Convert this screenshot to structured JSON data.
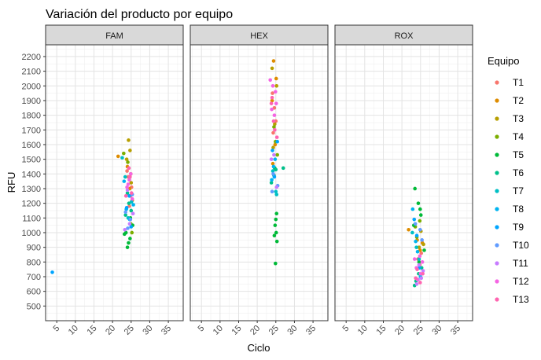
{
  "chart_data": {
    "type": "scatter",
    "title": "Variación del producto por equipo",
    "xlabel": "Ciclo",
    "ylabel": "RFU",
    "xlim": [
      2,
      39
    ],
    "ylim": [
      400,
      2280
    ],
    "x_ticks": [
      5,
      10,
      15,
      20,
      25,
      30,
      35
    ],
    "y_ticks": [
      500,
      600,
      700,
      800,
      900,
      1000,
      1100,
      1200,
      1300,
      1400,
      1500,
      1600,
      1700,
      1800,
      1900,
      2000,
      2100,
      2200
    ],
    "grid": true,
    "facets": [
      "FAM",
      "HEX",
      "ROX"
    ],
    "legend": {
      "title": "Equipo",
      "position": "right",
      "entries": [
        {
          "label": "T1",
          "color": "#F8766D"
        },
        {
          "label": "T2",
          "color": "#DE8C00"
        },
        {
          "label": "T3",
          "color": "#B79F00"
        },
        {
          "label": "T4",
          "color": "#7CAE00"
        },
        {
          "label": "T5",
          "color": "#00BA38"
        },
        {
          "label": "T6",
          "color": "#00C08B"
        },
        {
          "label": "T7",
          "color": "#00BFC4"
        },
        {
          "label": "T8",
          "color": "#00B4F0"
        },
        {
          "label": "T9",
          "color": "#00A5FF"
        },
        {
          "label": "T10",
          "color": "#619CFF"
        },
        {
          "label": "T11",
          "color": "#C77CFF"
        },
        {
          "label": "T12",
          "color": "#F564E3"
        },
        {
          "label": "T13",
          "color": "#FF64B0"
        }
      ]
    },
    "series": [
      {
        "facet": "FAM",
        "equipo": "T1",
        "x": [
          24.2,
          24.8,
          25.1,
          24.5,
          23.9
        ],
        "y": [
          1380,
          1250,
          1310,
          1180,
          1420
        ]
      },
      {
        "facet": "FAM",
        "equipo": "T2",
        "x": [
          21.5,
          24.0,
          24.6,
          25.3,
          24.9
        ],
        "y": [
          1520,
          1450,
          1300,
          1220,
          1400
        ]
      },
      {
        "facet": "FAM",
        "equipo": "T3",
        "x": [
          24.3,
          24.7,
          23.8,
          25.0
        ],
        "y": [
          1630,
          1560,
          1500,
          1340
        ]
      },
      {
        "facet": "FAM",
        "equipo": "T4",
        "x": [
          23.0,
          24.1,
          24.9,
          25.2
        ],
        "y": [
          1540,
          1480,
          1060,
          1000
        ]
      },
      {
        "facet": "FAM",
        "equipo": "T5",
        "x": [
          24.0,
          24.3,
          24.7,
          23.6,
          25.4,
          23.2,
          24.8
        ],
        "y": [
          900,
          930,
          960,
          1000,
          1050,
          990,
          1100
        ]
      },
      {
        "facet": "FAM",
        "equipo": "T6",
        "x": [
          23.5,
          24.4,
          25.0,
          24.0
        ],
        "y": [
          1120,
          1200,
          1150,
          1270
        ]
      },
      {
        "facet": "FAM",
        "equipo": "T7",
        "x": [
          22.6,
          23.4,
          24.2,
          25.1
        ],
        "y": [
          1510,
          1380,
          1100,
          1210
        ]
      },
      {
        "facet": "FAM",
        "equipo": "T8",
        "x": [
          23.1,
          24.6,
          25.6,
          23.7
        ],
        "y": [
          1350,
          1090,
          1190,
          1160
        ]
      },
      {
        "facet": "FAM",
        "equipo": "T9",
        "x": [
          3.8,
          23.8,
          24.5,
          25.0
        ],
        "y": [
          730,
          1170,
          1250,
          1040
        ]
      },
      {
        "facet": "FAM",
        "equipo": "T10",
        "x": [
          24.1,
          23.5,
          24.8,
          25.3
        ],
        "y": [
          1030,
          1140,
          1090,
          1260
        ]
      },
      {
        "facet": "FAM",
        "equipo": "T11",
        "x": [
          23.3,
          24.6,
          25.5,
          24.0
        ],
        "y": [
          1020,
          1060,
          1130,
          1290
        ]
      },
      {
        "facet": "FAM",
        "equipo": "T12",
        "x": [
          24.2,
          24.9,
          25.3,
          23.9,
          24.5
        ],
        "y": [
          1330,
          1400,
          1230,
          1310,
          1360
        ]
      },
      {
        "facet": "FAM",
        "equipo": "T13",
        "x": [
          24.4,
          23.6,
          25.1,
          24.7
        ],
        "y": [
          1440,
          1250,
          1270,
          1380
        ]
      },
      {
        "facet": "HEX",
        "equipo": "T1",
        "x": [
          24.1,
          24.6,
          25.0,
          24.3
        ],
        "y": [
          1950,
          1850,
          1760,
          1680
        ]
      },
      {
        "facet": "HEX",
        "equipo": "T2",
        "x": [
          24.4,
          25.1,
          24.0,
          24.8,
          24.2
        ],
        "y": [
          2170,
          2050,
          1900,
          1600,
          1470
        ]
      },
      {
        "facet": "HEX",
        "equipo": "T3",
        "x": [
          24.0,
          25.2,
          24.7,
          24.3
        ],
        "y": [
          2120,
          2000,
          1740,
          1580
        ]
      },
      {
        "facet": "HEX",
        "equipo": "T4",
        "x": [
          24.5,
          24.9,
          25.4
        ],
        "y": [
          1720,
          1620,
          1530
        ]
      },
      {
        "facet": "HEX",
        "equipo": "T5",
        "x": [
          24.9,
          25.3,
          24.6,
          25.1,
          24.8,
          25.0,
          25.2,
          24.7
        ],
        "y": [
          790,
          940,
          980,
          1000,
          1050,
          1090,
          1130,
          1440
        ]
      },
      {
        "facet": "HEX",
        "equipo": "T6",
        "x": [
          23.8,
          24.5,
          25.0,
          27.0
        ],
        "y": [
          1340,
          1390,
          1430,
          1440
        ]
      },
      {
        "facet": "HEX",
        "equipo": "T7",
        "x": [
          24.2,
          25.2,
          25.0
        ],
        "y": [
          1420,
          1260,
          1280
        ]
      },
      {
        "facet": "HEX",
        "equipo": "T8",
        "x": [
          24.8,
          23.9,
          24.4
        ],
        "y": [
          1500,
          1360,
          1450
        ]
      },
      {
        "facet": "HEX",
        "equipo": "T9",
        "x": [
          25.4,
          24.1,
          24.6
        ],
        "y": [
          1620,
          1560,
          1380
        ]
      },
      {
        "facet": "HEX",
        "equipo": "T10",
        "x": [
          24.3,
          25.5,
          24.0
        ],
        "y": [
          1400,
          1320,
          1280
        ]
      },
      {
        "facet": "HEX",
        "equipo": "T11",
        "x": [
          24.5,
          23.8,
          25.2
        ],
        "y": [
          1530,
          1500,
          1310
        ]
      },
      {
        "facet": "HEX",
        "equipo": "T12",
        "x": [
          23.5,
          24.2,
          24.9,
          25.1,
          24.6,
          23.9
        ],
        "y": [
          2040,
          2000,
          1960,
          1880,
          1800,
          1840
        ]
      },
      {
        "facet": "HEX",
        "equipo": "T13",
        "x": [
          24.0,
          24.7,
          25.3,
          24.4,
          23.8
        ],
        "y": [
          1920,
          1700,
          1650,
          1760,
          1880
        ]
      },
      {
        "facet": "ROX",
        "equipo": "T1",
        "x": [
          24.3,
          25.2,
          24.8
        ],
        "y": [
          820,
          860,
          780
        ]
      },
      {
        "facet": "ROX",
        "equipo": "T2",
        "x": [
          21.8,
          25.5,
          24.9,
          24.1
        ],
        "y": [
          1020,
          930,
          880,
          950
        ]
      },
      {
        "facet": "ROX",
        "equipo": "T3",
        "x": [
          24.6,
          25.1,
          25.8
        ],
        "y": [
          900,
          1010,
          920
        ]
      },
      {
        "facet": "ROX",
        "equipo": "T4",
        "x": [
          24.0,
          24.8,
          23.6
        ],
        "y": [
          970,
          1080,
          1040
        ]
      },
      {
        "facet": "ROX",
        "equipo": "T5",
        "x": [
          23.5,
          24.4,
          24.9,
          25.1,
          23.2,
          24.6,
          26.0
        ],
        "y": [
          1300,
          1200,
          1160,
          1120,
          1050,
          800,
          880
        ]
      },
      {
        "facet": "ROX",
        "equipo": "T6",
        "x": [
          23.8,
          24.5,
          25.3,
          23.4
        ],
        "y": [
          670,
          720,
          760,
          640
        ]
      },
      {
        "facet": "ROX",
        "equipo": "T7",
        "x": [
          22.8,
          23.9,
          24.6
        ],
        "y": [
          1000,
          900,
          820
        ]
      },
      {
        "facet": "ROX",
        "equipo": "T8",
        "x": [
          22.9,
          23.7,
          24.2,
          25.0
        ],
        "y": [
          1160,
          940,
          870,
          700
        ]
      },
      {
        "facet": "ROX",
        "equipo": "T9",
        "x": [
          23.3,
          24.0,
          24.7
        ],
        "y": [
          1090,
          980,
          760
        ]
      },
      {
        "facet": "ROX",
        "equipo": "T10",
        "x": [
          23.6,
          24.9,
          25.4,
          24.3
        ],
        "y": [
          1060,
          1020,
          950,
          680
        ]
      },
      {
        "facet": "ROX",
        "equipo": "T11",
        "x": [
          24.0,
          25.2,
          24.6,
          25.7
        ],
        "y": [
          650,
          690,
          780,
          740
        ]
      },
      {
        "facet": "ROX",
        "equipo": "T12",
        "x": [
          23.4,
          24.8,
          25.5,
          25.0,
          24.2,
          23.9
        ],
        "y": [
          820,
          840,
          800,
          720,
          680,
          760
        ]
      },
      {
        "facet": "ROX",
        "equipo": "T13",
        "x": [
          24.1,
          25.6,
          23.7,
          24.9
        ],
        "y": [
          750,
          720,
          690,
          660
        ]
      }
    ]
  }
}
